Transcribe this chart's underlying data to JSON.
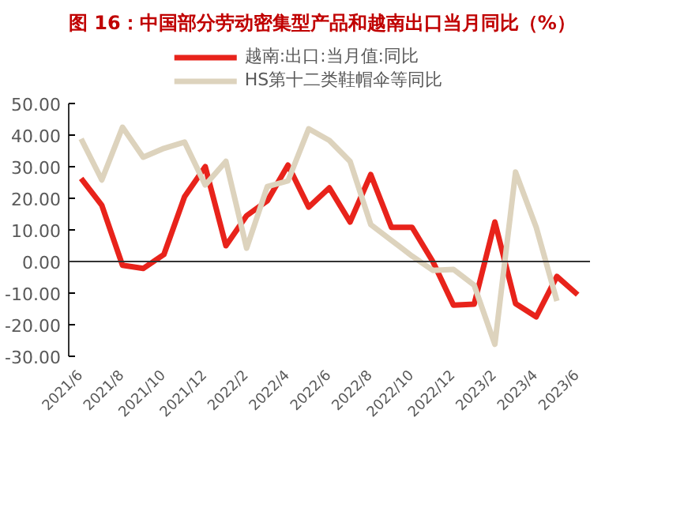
{
  "chart_data": {
    "type": "line",
    "title": "图 16：中国部分劳动密集型产品和越南出口当月同比（%）",
    "categories": [
      "2021/6",
      null,
      "2021/8",
      null,
      "2021/10",
      null,
      "2021/12",
      null,
      "2022/2",
      null,
      "2022/4",
      null,
      "2022/6",
      null,
      "2022/8",
      null,
      "2022/10",
      null,
      "2022/12",
      null,
      "2023/2",
      null,
      "2023/4",
      null,
      "2023/6"
    ],
    "series": [
      {
        "name": "越南:出口:当月值:同比",
        "color": "#e8231b",
        "values": [
          26.3,
          17.8,
          -1.2,
          -2.2,
          2.2,
          20.5,
          30,
          5,
          14.5,
          19.2,
          30.5,
          17.2,
          23.3,
          12.5,
          27.5,
          10.8,
          10.8,
          0,
          -13.8,
          -13.5,
          12.5,
          -13.3,
          -17.5,
          -4.7,
          -10.5
        ]
      },
      {
        "name": "HS第十二类鞋帽伞等同比",
        "color": "#ddd3bd",
        "values": [
          38.8,
          25.8,
          42.5,
          33,
          35.8,
          37.8,
          24.2,
          31.7,
          4.2,
          23.7,
          25.5,
          42,
          38.3,
          31.7,
          11.7,
          6.7,
          1.7,
          -2.8,
          -2.5,
          -7.5,
          -26.2,
          28.3,
          10.8,
          -12.5,
          null
        ]
      }
    ],
    "ylim": [
      -30,
      50
    ],
    "yticks": [
      {
        "value": -30,
        "label": "-30.00"
      },
      {
        "value": -20,
        "label": "-20.00"
      },
      {
        "value": -10,
        "label": "-10.00"
      },
      {
        "value": 0,
        "label": "0.00"
      },
      {
        "value": 10,
        "label": "10.00"
      },
      {
        "value": 20,
        "label": "20.00"
      },
      {
        "value": 30,
        "label": "30.00"
      },
      {
        "value": 40,
        "label": "40.00"
      },
      {
        "value": 50,
        "label": "50.00"
      }
    ],
    "ref_lines": [
      {
        "axis": "y",
        "value": 0
      }
    ],
    "grid": false,
    "legend": "top",
    "marker": "none",
    "line_style": "solid"
  }
}
